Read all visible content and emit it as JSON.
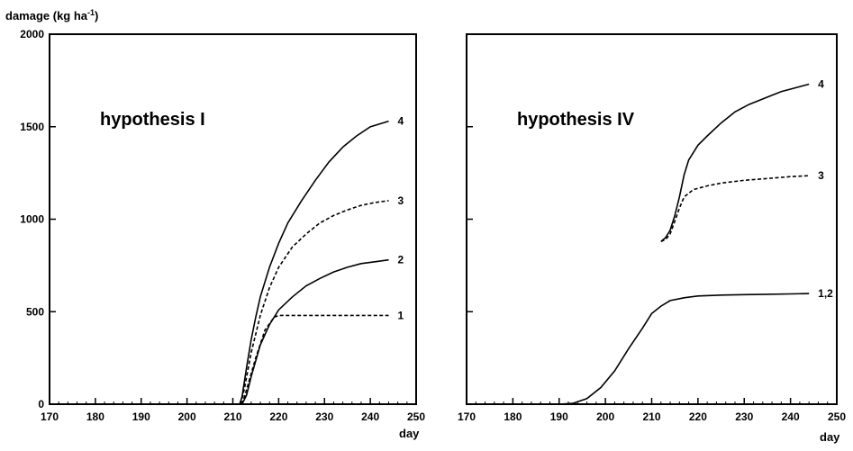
{
  "chart_data": [
    {
      "type": "line",
      "title": "hypothesis I",
      "ylabel": "damage (kg ha",
      "ylabel_sup": "-1",
      "ylabel_close": ")",
      "xlabel": "day",
      "xlim": [
        170,
        250
      ],
      "ylim": [
        0,
        2000
      ],
      "xticks": [
        "170",
        "180",
        "190",
        "200",
        "210",
        "220",
        "230",
        "240",
        "250"
      ],
      "yticks": [
        "0",
        "500",
        "1000",
        "1500",
        "2000"
      ],
      "grid": false,
      "series": [
        {
          "label": "4",
          "dash": "solid",
          "points": [
            [
              211.5,
              0
            ],
            [
              212,
              40
            ],
            [
              213,
              200
            ],
            [
              214,
              350
            ],
            [
              215,
              470
            ],
            [
              216,
              580
            ],
            [
              218,
              740
            ],
            [
              220,
              870
            ],
            [
              222,
              980
            ],
            [
              225,
              1100
            ],
            [
              228,
              1210
            ],
            [
              231,
              1310
            ],
            [
              234,
              1390
            ],
            [
              237,
              1450
            ],
            [
              240,
              1500
            ],
            [
              244,
              1530
            ]
          ]
        },
        {
          "label": "3",
          "dash": "dashed",
          "points": [
            [
              211.7,
              0
            ],
            [
              212.5,
              80
            ],
            [
              214,
              280
            ],
            [
              216,
              480
            ],
            [
              218,
              630
            ],
            [
              220,
              740
            ],
            [
              223,
              850
            ],
            [
              226,
              920
            ],
            [
              229,
              980
            ],
            [
              232,
              1020
            ],
            [
              235,
              1050
            ],
            [
              238,
              1075
            ],
            [
              241,
              1090
            ],
            [
              244,
              1100
            ]
          ]
        },
        {
          "label": "2",
          "dash": "solid",
          "points": [
            [
              212,
              0
            ],
            [
              213,
              50
            ],
            [
              214,
              150
            ],
            [
              216,
              320
            ],
            [
              218,
              430
            ],
            [
              220,
              510
            ],
            [
              223,
              580
            ],
            [
              226,
              640
            ],
            [
              229,
              680
            ],
            [
              232,
              715
            ],
            [
              235,
              740
            ],
            [
              238,
              760
            ],
            [
              241,
              770
            ],
            [
              244,
              780
            ]
          ]
        },
        {
          "label": "1",
          "dash": "dashed",
          "points": [
            [
              212,
              0
            ],
            [
              213,
              80
            ],
            [
              215,
              250
            ],
            [
              217,
              400
            ],
            [
              219,
              470
            ],
            [
              220,
              480
            ],
            [
              225,
              480
            ],
            [
              230,
              480
            ],
            [
              244,
              480
            ]
          ]
        }
      ]
    },
    {
      "type": "line",
      "title": "hypothesis IV",
      "xlabel": "day",
      "xlim": [
        170,
        250
      ],
      "ylim": [
        0,
        2000
      ],
      "xticks": [
        "170",
        "180",
        "190",
        "200",
        "210",
        "220",
        "230",
        "240",
        "250"
      ],
      "grid": false,
      "series": [
        {
          "label": "4",
          "dash": "solid",
          "points": [
            [
              212,
              880
            ],
            [
              213,
              900
            ],
            [
              214,
              940
            ],
            [
              215,
              1020
            ],
            [
              216,
              1120
            ],
            [
              217,
              1240
            ],
            [
              218,
              1320
            ],
            [
              220,
              1400
            ],
            [
              222,
              1450
            ],
            [
              225,
              1520
            ],
            [
              228,
              1580
            ],
            [
              231,
              1620
            ],
            [
              235,
              1660
            ],
            [
              238,
              1690
            ],
            [
              241,
              1710
            ],
            [
              244,
              1730
            ]
          ]
        },
        {
          "label": "3",
          "dash": "dashed",
          "points": [
            [
              212,
              880
            ],
            [
              213,
              890
            ],
            [
              214,
              920
            ],
            [
              215,
              990
            ],
            [
              216,
              1060
            ],
            [
              217,
              1120
            ],
            [
              219,
              1160
            ],
            [
              222,
              1180
            ],
            [
              225,
              1195
            ],
            [
              230,
              1210
            ],
            [
              235,
              1220
            ],
            [
              240,
              1230
            ],
            [
              244,
              1235
            ]
          ]
        },
        {
          "label": "1,2",
          "dash": "solid",
          "points": [
            [
              190,
              0
            ],
            [
              193,
              5
            ],
            [
              196,
              30
            ],
            [
              199,
              90
            ],
            [
              202,
              180
            ],
            [
              205,
              300
            ],
            [
              208,
              410
            ],
            [
              210,
              490
            ],
            [
              212,
              530
            ],
            [
              214,
              560
            ],
            [
              217,
              575
            ],
            [
              220,
              585
            ],
            [
              225,
              590
            ],
            [
              230,
              592
            ],
            [
              235,
              594
            ],
            [
              240,
              596
            ],
            [
              244,
              598
            ]
          ]
        }
      ]
    }
  ]
}
